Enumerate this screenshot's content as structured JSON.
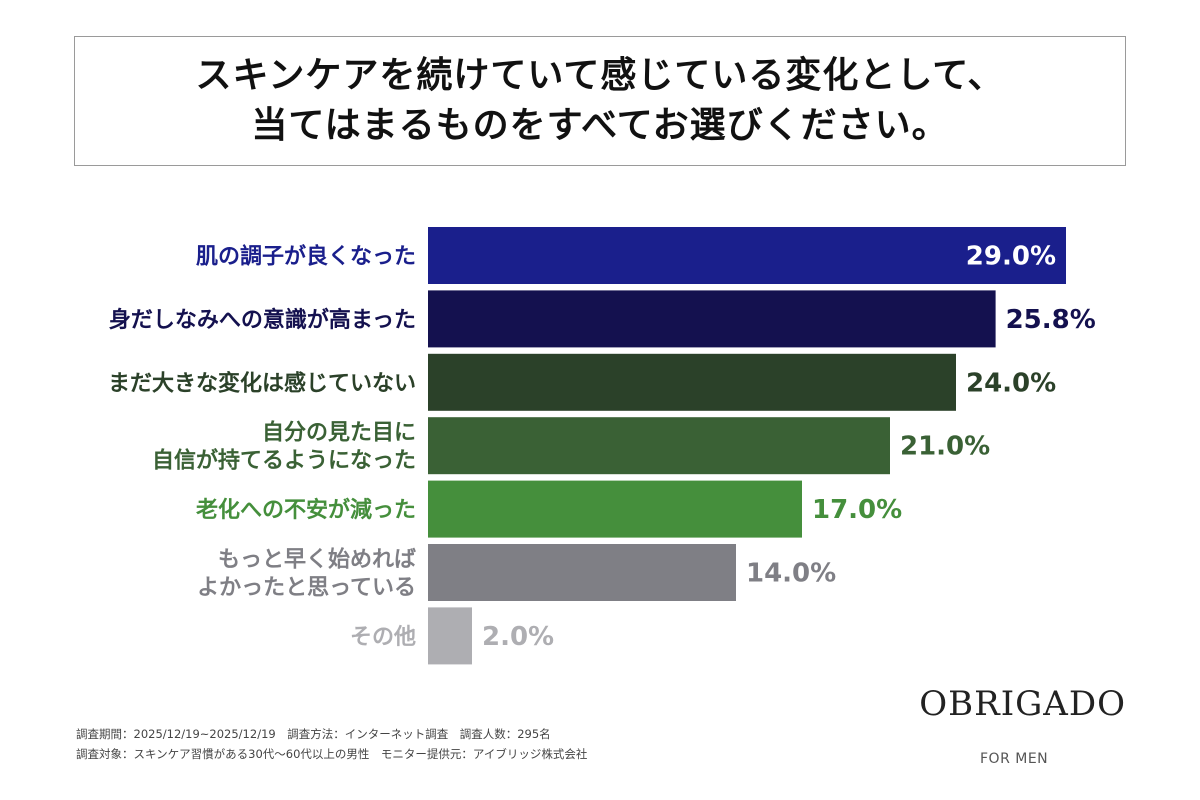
{
  "title": {
    "line1": "スキンケアを続けていて感じている変化として、",
    "line2": "当てはまるものをすべてお選びください。"
  },
  "chart_data": {
    "type": "bar",
    "orientation": "horizontal",
    "categories": [
      [
        "肌の調子が良くなった"
      ],
      [
        "身だしなみへの意識が高まった"
      ],
      [
        "まだ大きな変化は感じていない"
      ],
      [
        "自分の見た目に",
        "自信が持てるようになった"
      ],
      [
        "老化への不安が減った"
      ],
      [
        "もっと早く始めれば",
        "よかったと思っている"
      ],
      [
        "その他"
      ]
    ],
    "values": [
      29.0,
      25.8,
      24.0,
      21.0,
      17.0,
      14.0,
      2.0
    ],
    "value_labels": [
      "29.0%",
      "25.8%",
      "24.0%",
      "21.0%",
      "17.0%",
      "14.0%",
      "2.0%"
    ],
    "bar_colors": [
      "#1a1f8c",
      "#14114f",
      "#2b4129",
      "#3a6135",
      "#458f3c",
      "#7f7f85",
      "#aeaeb2"
    ],
    "label_colors": [
      "#1a1f8c",
      "#14114f",
      "#2b4129",
      "#3a6135",
      "#458f3c",
      "#7f7f85",
      "#aeaeb2"
    ],
    "value_label_inside": [
      true,
      false,
      false,
      false,
      false,
      false,
      false
    ],
    "xlim": [
      0,
      30
    ],
    "grid": false,
    "legend": false
  },
  "footer": {
    "line1": "調査期間：2025/12/19~2025/12/19　調査方法：インターネット調査　調査人数：295名",
    "line2": "調査対象：スキンケア習慣がある30代〜60代以上の男性　モニター提供元：アイブリッジ株式会社"
  },
  "brand": {
    "name": "OBRIGADO",
    "sub": "FOR MEN"
  }
}
